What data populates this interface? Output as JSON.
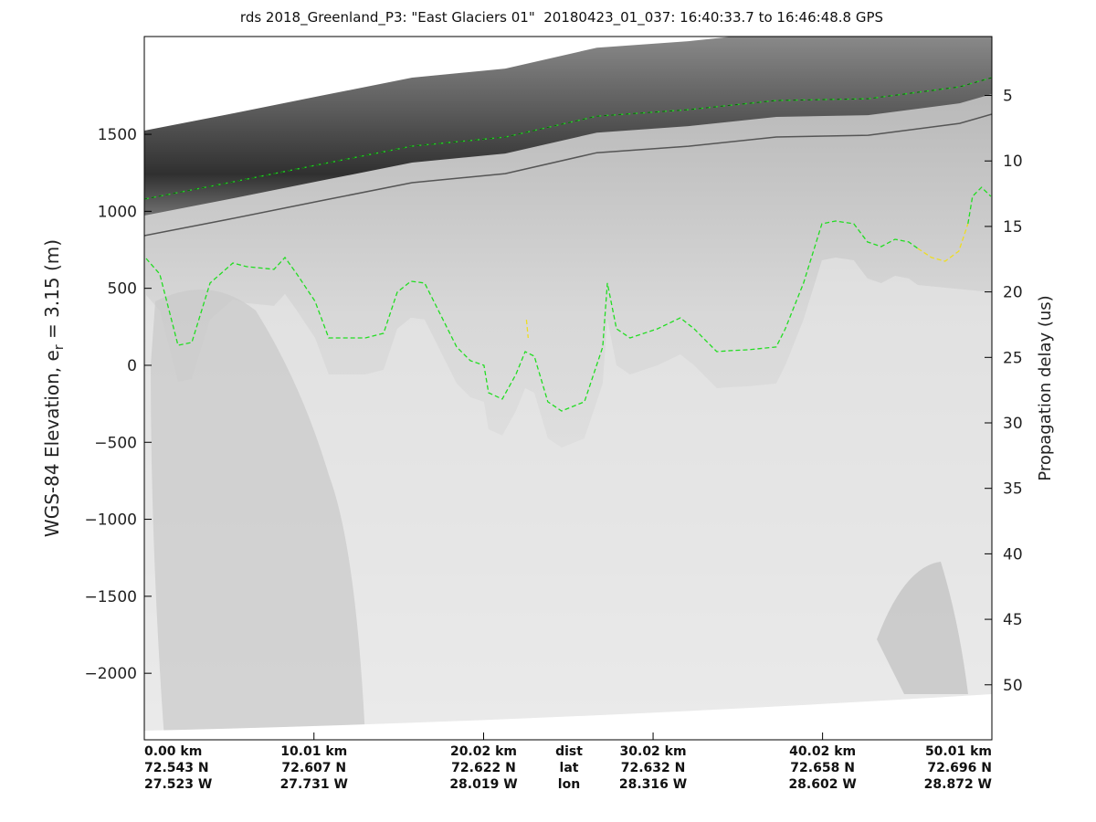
{
  "chart_data": {
    "type": "line",
    "title": "rds 2018_Greenland_P3: \"East Glaciers 01\"  20180423_01_037: 16:40:33.7 to 16:46:48.8 GPS",
    "ylabel_left": "WGS-84 Elevation, e",
    "ylabel_left_sub": "r",
    "ylabel_left_tail": " = 3.15 (m)",
    "ylabel_right": "Propagation delay (us)",
    "xlim_km": [
      0,
      50.01
    ],
    "ylim": [
      -2432,
      2135
    ],
    "ylim_right": [
      0.5,
      54.2
    ],
    "left_ticks": [
      1500,
      1000,
      500,
      0,
      -500,
      -1000,
      -1500,
      -2000
    ],
    "left_tick_labels": [
      "1500",
      "1000",
      "500",
      "0",
      "−500",
      "−1000",
      "−1500",
      "−2000"
    ],
    "right_ticks": [
      5,
      10,
      15,
      20,
      25,
      30,
      35,
      40,
      45,
      50
    ],
    "right_tick_labels": [
      "5",
      "10",
      "15",
      "20",
      "25",
      "30",
      "35",
      "40",
      "45",
      "50"
    ],
    "x_ticks_km": [
      0,
      10.01,
      20.02,
      30.02,
      40.02,
      50.01
    ],
    "x_tick_rows": [
      {
        "label": "dist",
        "values": [
          "0.00 km",
          "10.01 km",
          "20.02 km",
          "30.02 km",
          "40.02 km",
          "50.01 km"
        ]
      },
      {
        "label": "lat",
        "values": [
          "72.543 N",
          "72.607 N",
          "72.622 N",
          "72.632 N",
          "72.658 N",
          "72.696 N"
        ]
      },
      {
        "label": "lon",
        "values": [
          "27.523 W",
          "27.731 W",
          "28.019 W",
          "28.316 W",
          "28.602 W",
          "28.872 W"
        ]
      }
    ],
    "series": [
      {
        "name": "surface",
        "color": "#22dd22",
        "style": "dashed",
        "x": [
          0,
          5,
          10.4,
          15.8,
          21.3,
          26.7,
          32.1,
          37.3,
          42.7,
          48.1,
          50.01
        ],
        "y": [
          1079,
          1186,
          1305,
          1423,
          1482,
          1618,
          1660,
          1720,
          1731,
          1808,
          1868
        ]
      },
      {
        "name": "bottom",
        "color": "#22dd22",
        "style": "dashed",
        "x": [
          0.11,
          0.91,
          1.99,
          2.8,
          3.88,
          5.23,
          6.03,
          7.65,
          8.3,
          9.0,
          10.08,
          10.88,
          13.04,
          14.12,
          14.92,
          15.73,
          16.54,
          17.35,
          18.43,
          19.24,
          20.04,
          20.31,
          21.12,
          21.93,
          22.47,
          23.01,
          23.81,
          24.62,
          25.97,
          27.05,
          27.32,
          27.86,
          28.66,
          30.28,
          31.63,
          32.44,
          33.78,
          34.59,
          35.67,
          37.28,
          37.82,
          38.9,
          39.98,
          40.79,
          41.86,
          42.67,
          43.48,
          44.29,
          45.1,
          45.64
        ],
        "y": [
          694,
          593,
          130,
          148,
          534,
          664,
          641,
          623,
          700,
          593,
          415,
          178,
          178,
          208,
          474,
          546,
          534,
          356,
          119,
          30,
          0,
          -178,
          -219,
          -59,
          89,
          59,
          -237,
          -297,
          -237,
          119,
          534,
          237,
          178,
          237,
          308,
          237,
          89,
          95,
          101,
          119,
          237,
          534,
          919,
          937,
          919,
          801,
          771,
          818,
          801,
          759
        ]
      },
      {
        "name": "bottom-end",
        "color": "#22dd22",
        "style": "dashed",
        "x": [
          48.6,
          48.87,
          49.4,
          49.95
        ],
        "y": [
          919,
          1097,
          1156,
          1097
        ]
      },
      {
        "name": "bottom-alt-1",
        "color": "#eedd22",
        "style": "dashed",
        "x": [
          45.64,
          46.44,
          47.25,
          48.06,
          48.6
        ],
        "y": [
          759,
          700,
          676,
          741,
          919
        ]
      },
      {
        "name": "bottom-alt-2",
        "color": "#eedd22",
        "style": "dashed",
        "x": [
          22.55,
          22.65
        ],
        "y": [
          296,
          178
        ]
      }
    ]
  }
}
